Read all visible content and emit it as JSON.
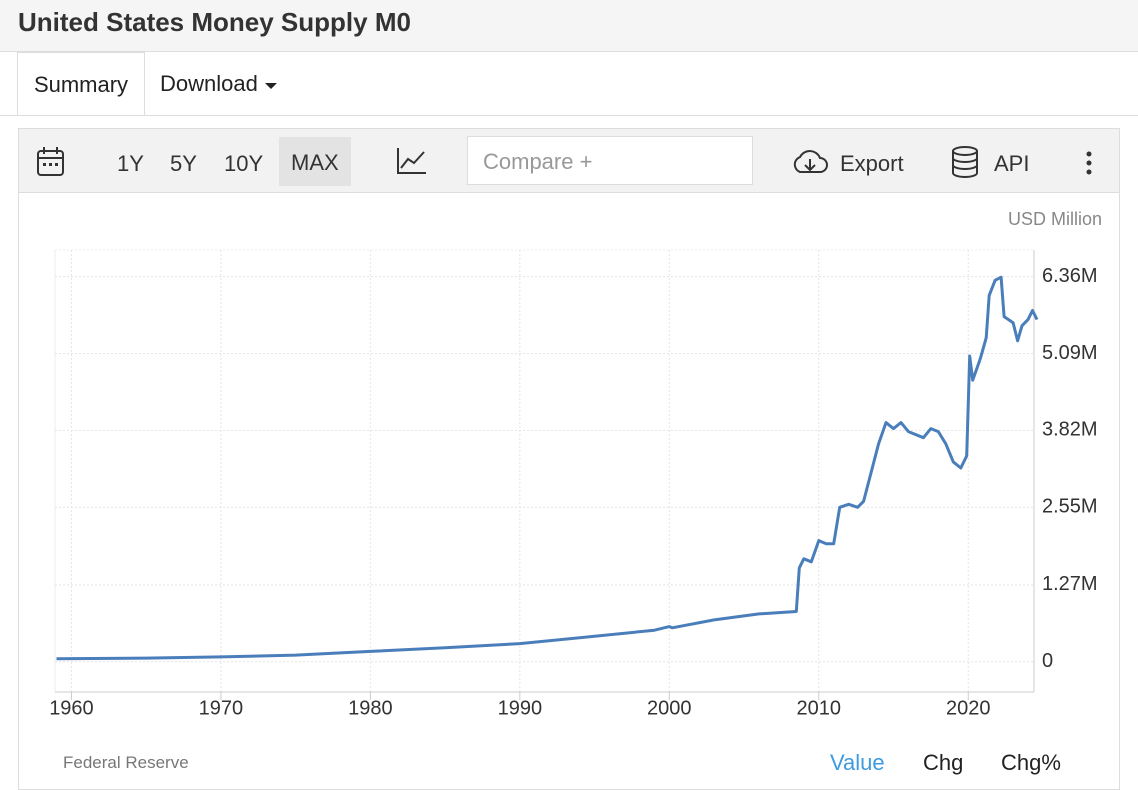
{
  "header": {
    "title": "United States Money Supply M0"
  },
  "tabs": [
    "Summary",
    "Download"
  ],
  "toolbar": {
    "ranges": [
      "1Y",
      "5Y",
      "10Y",
      "MAX"
    ],
    "compare_placeholder": "Compare +",
    "export": "Export",
    "api": "API"
  },
  "chart_data": {
    "type": "line",
    "unit_label": "USD Million",
    "color": "#4a7ebb",
    "x": [
      1959,
      1965,
      1970,
      1975,
      1980,
      1985,
      1990,
      1995,
      1999,
      2000,
      2000.2,
      2003,
      2006,
      2008.5,
      2008.7,
      2009,
      2009.5,
      2010,
      2010.5,
      2011,
      2011.4,
      2012,
      2012.6,
      2013,
      2014,
      2014.5,
      2015,
      2015.5,
      2016,
      2017,
      2017.5,
      2018,
      2018.5,
      2019,
      2019.5,
      2019.9,
      2020.1,
      2020.3,
      2020.8,
      2021.2,
      2021.4,
      2021.8,
      2022.2,
      2022.4,
      2023,
      2023.3,
      2023.6,
      2024,
      2024.3,
      2024.6
    ],
    "values": [
      50000,
      60000,
      80000,
      110000,
      170000,
      230000,
      300000,
      420000,
      520000,
      580000,
      560000,
      690000,
      790000,
      830000,
      1550000,
      1700000,
      1650000,
      2000000,
      1950000,
      1950000,
      2550000,
      2600000,
      2550000,
      2650000,
      3600000,
      3950000,
      3850000,
      3950000,
      3800000,
      3700000,
      3850000,
      3800000,
      3600000,
      3300000,
      3200000,
      3400000,
      5050000,
      4650000,
      5000000,
      5350000,
      6050000,
      6300000,
      6350000,
      5700000,
      5600000,
      5300000,
      5550000,
      5650000,
      5800000,
      5650000
    ],
    "xlim": [
      1958.9,
      2024.4
    ],
    "ylim": [
      -500000,
      6800000
    ],
    "xticks": [
      1960,
      1970,
      1980,
      1990,
      2000,
      2010,
      2020
    ],
    "yticks": [
      0,
      {
        "value": 1270000,
        "label": "1.27M"
      },
      {
        "value": 2550000,
        "label": "2.55M"
      },
      {
        "value": 3820000,
        "label": "3.82M"
      },
      {
        "value": 5090000,
        "label": "5.09M"
      },
      {
        "value": 6360000,
        "label": "6.36M"
      }
    ],
    "grid": true
  },
  "footer": {
    "source": "Federal Reserve",
    "tabs": [
      "Value",
      "Chg",
      "Chg%"
    ]
  }
}
